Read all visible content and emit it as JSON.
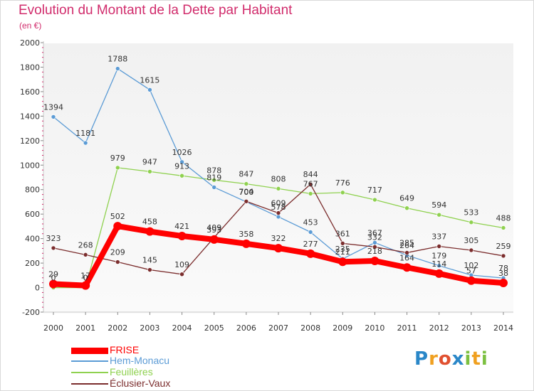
{
  "chart_data": {
    "type": "line",
    "title": "Evolution du Montant de la Dette par Habitant",
    "subtitle": "(en €)",
    "categories": [
      "2000",
      "2001",
      "2002",
      "2003",
      "2004",
      "2005",
      "2006",
      "2007",
      "2008",
      "2009",
      "2010",
      "2011",
      "2012",
      "2013",
      "2014"
    ],
    "ylim": [
      -200,
      2000
    ],
    "yticks": [
      -200,
      0,
      200,
      400,
      600,
      800,
      1000,
      1200,
      1400,
      1600,
      1800,
      2000
    ],
    "grid": false,
    "legend_position": "bottom-left",
    "series": [
      {
        "name": "FRISE",
        "color": "#ff0000",
        "values": [
          29,
          17,
          502,
          458,
          421,
          393,
          358,
          322,
          277,
          211,
          218,
          164,
          114,
          57,
          38
        ],
        "labels": [
          "29",
          "17",
          "502",
          "458",
          "421",
          "393",
          "358",
          "322",
          "277",
          "211",
          "218",
          "164",
          "114",
          "57",
          "38"
        ]
      },
      {
        "name": "Hem-Monacu",
        "color": "#5b9bd5",
        "values": [
          1394,
          1181,
          1788,
          1615,
          1026,
          819,
          700,
          578,
          453,
          235,
          367,
          264,
          179,
          102,
          78
        ],
        "labels": [
          "1394",
          "1181",
          "1788",
          "1615",
          "1026",
          "819",
          "700",
          "578",
          "453",
          "235",
          "367",
          "264",
          "179",
          "102",
          "78"
        ]
      },
      {
        "name": "Feuillères",
        "color": "#8fd14f",
        "values": [
          0,
          0,
          979,
          947,
          913,
          878,
          847,
          808,
          767,
          776,
          717,
          649,
          594,
          533,
          488
        ],
        "labels": [
          "0",
          "0",
          "979",
          "947",
          "913",
          "878",
          "847",
          "808",
          "767",
          "776",
          "717",
          "649",
          "594",
          "533",
          "488"
        ]
      },
      {
        "name": "Éclusier-Vaux",
        "color": "#7b2d2d",
        "values": [
          323,
          268,
          209,
          145,
          109,
          409,
          704,
          609,
          844,
          361,
          332,
          285,
          337,
          305,
          259
        ],
        "labels": [
          "323",
          "268",
          "209",
          "145",
          "109",
          "409",
          "704",
          "609",
          "844",
          "361",
          "332",
          "285",
          "337",
          "305",
          "259"
        ]
      }
    ]
  },
  "brand": {
    "letters": [
      "P",
      "r",
      "o",
      "x",
      "i",
      "t",
      "i"
    ]
  }
}
